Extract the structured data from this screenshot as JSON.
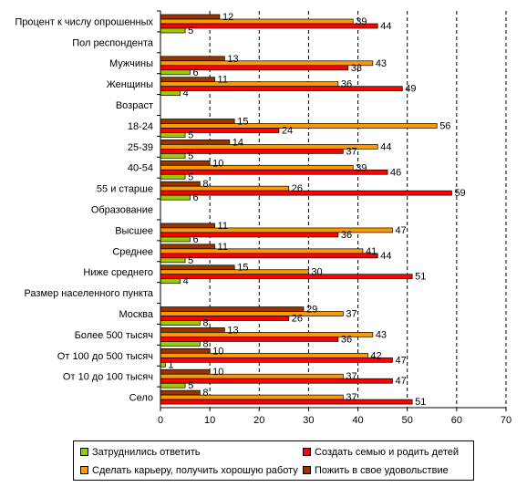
{
  "chart_data": {
    "type": "bar",
    "orientation": "horizontal",
    "title": "",
    "xlabel": "",
    "ylabel": "",
    "xlim": [
      0,
      70
    ],
    "x_ticks": [
      0,
      10,
      20,
      30,
      40,
      50,
      60,
      70
    ],
    "grid": "vertical dashed",
    "legend_placement": "bottom",
    "categories": [
      {
        "label": "Процент к числу опрошенных",
        "header": false
      },
      {
        "label": "Пол респондента",
        "header": true
      },
      {
        "label": "Мужчины",
        "header": false
      },
      {
        "label": "Женщины",
        "header": false
      },
      {
        "label": "Возраст",
        "header": true
      },
      {
        "label": "18-24",
        "header": false
      },
      {
        "label": "25-39",
        "header": false
      },
      {
        "label": "40-54",
        "header": false
      },
      {
        "label": "55 и старше",
        "header": false
      },
      {
        "label": "Образование",
        "header": true
      },
      {
        "label": "Высшее",
        "header": false
      },
      {
        "label": "Среднее",
        "header": false
      },
      {
        "label": "Ниже среднего",
        "header": false
      },
      {
        "label": "Размер населенного пункта",
        "header": true
      },
      {
        "label": "Москва",
        "header": false
      },
      {
        "label": "Более 500 тысяч",
        "header": false
      },
      {
        "label": "От 100 до 500 тысяч",
        "header": false
      },
      {
        "label": "От 10 до 100 тысяч",
        "header": false
      },
      {
        "label": "Село",
        "header": false
      }
    ],
    "series": [
      {
        "name": "Пожить в свое удовольствие",
        "color": "#993300",
        "values": [
          12,
          null,
          13,
          11,
          null,
          15,
          14,
          10,
          8,
          null,
          11,
          11,
          15,
          null,
          29,
          13,
          10,
          10,
          8
        ]
      },
      {
        "name": "Сделать карьеру, получить хорошую работу",
        "color": "#FF9900",
        "values": [
          39,
          null,
          43,
          36,
          null,
          56,
          44,
          39,
          26,
          null,
          47,
          41,
          30,
          null,
          37,
          43,
          42,
          37,
          37
        ]
      },
      {
        "name": "Создать семью и родить детей",
        "color": "#FF0000",
        "values": [
          44,
          null,
          38,
          49,
          null,
          24,
          37,
          46,
          59,
          null,
          36,
          44,
          51,
          null,
          26,
          36,
          47,
          47,
          51
        ]
      },
      {
        "name": "Затруднились ответить",
        "color": "#99CC00",
        "values": [
          5,
          null,
          6,
          4,
          null,
          5,
          5,
          5,
          6,
          null,
          6,
          5,
          4,
          null,
          8,
          8,
          1,
          5,
          null
        ]
      }
    ]
  },
  "legend": {
    "items": [
      {
        "label": "Затруднились ответить",
        "color": "#99CC00"
      },
      {
        "label": "Создать семью и родить детей",
        "color": "#FF0000"
      },
      {
        "label": "Сделать карьеру, получить хорошую работу",
        "color": "#FF9900"
      },
      {
        "label": "Пожить в свое удовольствие",
        "color": "#993300"
      }
    ]
  }
}
